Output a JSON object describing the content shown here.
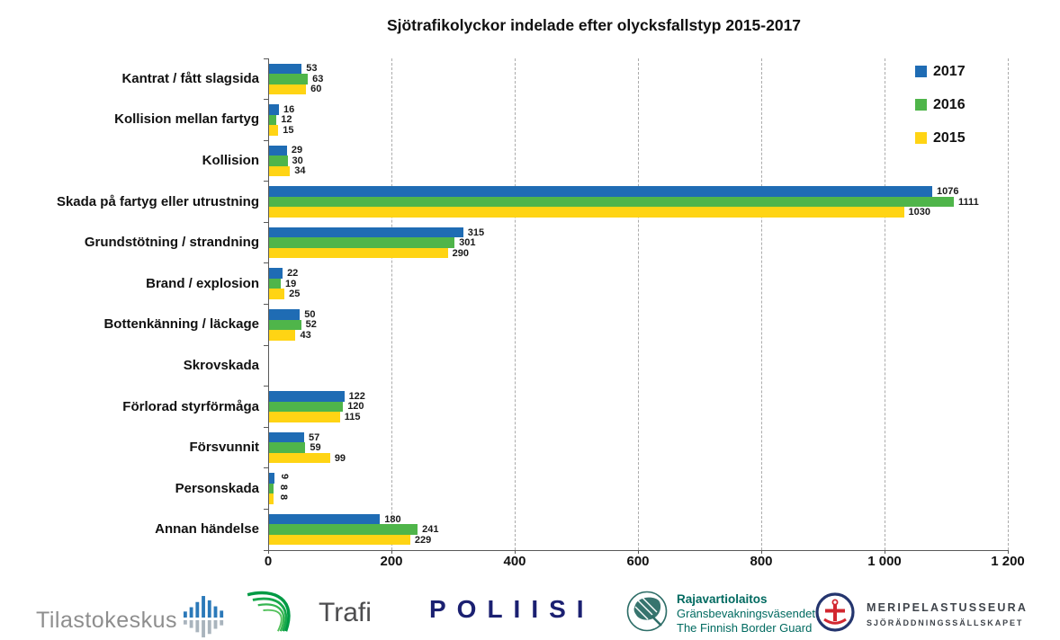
{
  "title": "Sjötrafikolyckor indelade efter olycksfallstyp 2015-2017",
  "chart_data": {
    "type": "bar",
    "orientation": "horizontal",
    "title": "Sjötrafikolyckor indelade efter olycksfallstyp 2015-2017",
    "categories": [
      "Kantrat / fått slagsida",
      "Kollision mellan fartyg",
      "Kollision",
      "Skada på fartyg eller utrustning",
      "Grundstötning / strandning",
      "Brand / explosion",
      "Bottenkänning / läckage",
      "Skrovskada",
      "Förlorad styrförmåga",
      "Försvunnit",
      "Personskada",
      "Annan händelse"
    ],
    "series": [
      {
        "name": "2017",
        "color": "#1f6cb4",
        "values": [
          53,
          16,
          29,
          1076,
          315,
          22,
          50,
          0,
          122,
          57,
          9,
          180
        ]
      },
      {
        "name": "2016",
        "color": "#4fb54a",
        "values": [
          63,
          12,
          30,
          1111,
          301,
          19,
          52,
          0,
          120,
          59,
          8,
          241
        ]
      },
      {
        "name": "2015",
        "color": "#ffd414",
        "values": [
          60,
          15,
          34,
          1030,
          290,
          25,
          43,
          0,
          115,
          99,
          8,
          229
        ]
      }
    ],
    "xlim": [
      0,
      1200
    ],
    "x_ticks": [
      "0",
      "200",
      "400",
      "600",
      "800",
      "1 000",
      "1 200"
    ],
    "legend_position": "top-right",
    "grid": "vertical-dashed",
    "rotated_label_category": "Personskada",
    "zero_values_unlabeled": true
  },
  "footer": {
    "tilastokeskus": {
      "text": "Tilastokeskus"
    },
    "trafi": {
      "text": "Trafi"
    },
    "poliisi": {
      "text": "POLIISI"
    },
    "rajavartiolaitos": {
      "line1": "Rajavartiolaitos",
      "line2": "Gränsbevakningsväsendet",
      "line3": "The Finnish Border Guard"
    },
    "meripelastusseura": {
      "line1": "MERIPELASTUSSEURA",
      "line2": "SJÖRÄDDNINGSSÄLLSKAPET"
    }
  }
}
